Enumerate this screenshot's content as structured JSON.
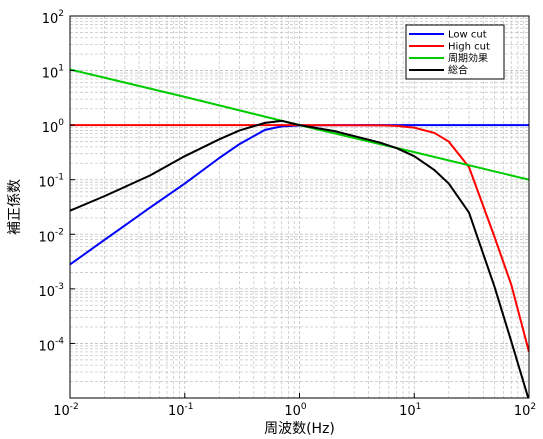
{
  "chart_data": {
    "type": "line",
    "xlabel": "周波数(Hz)",
    "ylabel": "補正係数",
    "xscale": "log",
    "yscale": "log",
    "xlim": [
      0.01,
      100
    ],
    "ylim": [
      1e-05,
      100
    ],
    "grid": true,
    "legend_position": "top-right",
    "x_ticks": [
      {
        "base": "10",
        "exp": "-2",
        "value": 0.01
      },
      {
        "base": "10",
        "exp": "-1",
        "value": 0.1
      },
      {
        "base": "10",
        "exp": "0",
        "value": 1
      },
      {
        "base": "10",
        "exp": "1",
        "value": 10
      },
      {
        "base": "10",
        "exp": "2",
        "value": 100
      }
    ],
    "y_ticks": [
      {
        "base": "10",
        "exp": "-4",
        "value": 0.0001
      },
      {
        "base": "10",
        "exp": "-3",
        "value": 0.001
      },
      {
        "base": "10",
        "exp": "-2",
        "value": 0.01
      },
      {
        "base": "10",
        "exp": "-1",
        "value": 0.1
      },
      {
        "base": "10",
        "exp": "0",
        "value": 1
      },
      {
        "base": "10",
        "exp": "1",
        "value": 10
      },
      {
        "base": "10",
        "exp": "2",
        "value": 100
      }
    ],
    "series": [
      {
        "name": "Low cut",
        "color": "#0000ff",
        "x": [
          0.01,
          0.02,
          0.05,
          0.1,
          0.2,
          0.3,
          0.5,
          0.7,
          1,
          2,
          5,
          10,
          100
        ],
        "y": [
          0.0028,
          0.0079,
          0.031,
          0.085,
          0.25,
          0.45,
          0.82,
          0.95,
          0.985,
          1.0,
          1.0,
          1.0,
          1.0
        ]
      },
      {
        "name": "High cut",
        "color": "#ff0000",
        "x": [
          0.01,
          0.1,
          1,
          5,
          7,
          10,
          15,
          20,
          30,
          50,
          70,
          100
        ],
        "y": [
          1.0,
          1.0,
          1.0,
          0.99,
          0.97,
          0.9,
          0.72,
          0.5,
          0.17,
          0.009,
          0.0012,
          7e-05
        ]
      },
      {
        "name": "周期効果",
        "color": "#00cc00",
        "x": [
          0.01,
          0.1,
          1,
          10,
          100
        ],
        "y": [
          10.5,
          3.3,
          1.0,
          0.32,
          0.1
        ]
      },
      {
        "name": "総合",
        "color": "#000000",
        "x": [
          0.01,
          0.02,
          0.05,
          0.1,
          0.2,
          0.3,
          0.5,
          0.7,
          1,
          2,
          5,
          7,
          10,
          15,
          20,
          30,
          50,
          70,
          100
        ],
        "y": [
          0.027,
          0.05,
          0.12,
          0.27,
          0.55,
          0.8,
          1.1,
          1.2,
          1.0,
          0.78,
          0.48,
          0.38,
          0.27,
          0.15,
          0.085,
          0.025,
          0.0011,
          0.00011,
          9e-06
        ]
      }
    ]
  }
}
